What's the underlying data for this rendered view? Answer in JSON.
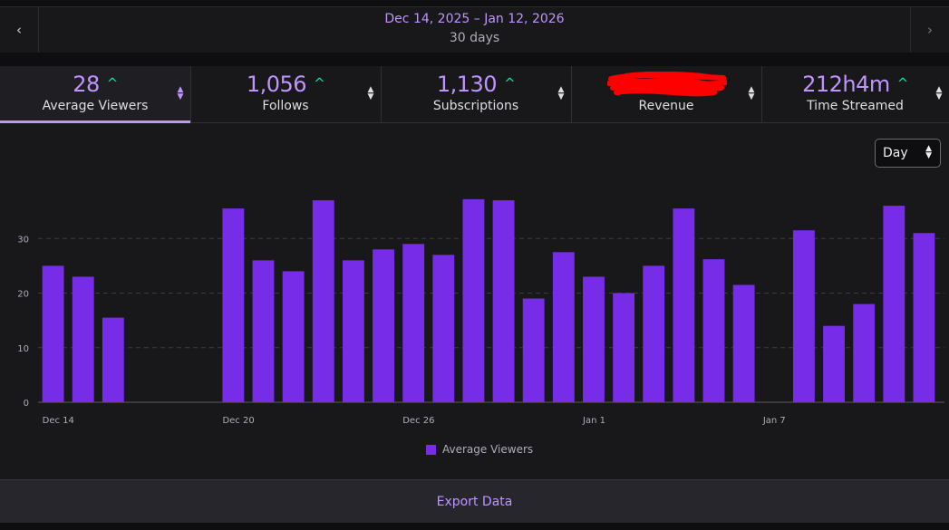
{
  "date_nav": {
    "prev_icon": "chevron-left",
    "next_icon": "chevron-right",
    "range": "Dec 14, 2025 – Jan 12, 2026",
    "days": "30 days"
  },
  "tabs": [
    {
      "value": "28",
      "label": "Average Viewers",
      "trend": "^",
      "active": true
    },
    {
      "value": "1,056",
      "label": "Follows",
      "trend": "^",
      "active": false
    },
    {
      "value": "1,130",
      "label": "Subscriptions",
      "trend": "^",
      "active": false
    },
    {
      "value": "",
      "label": "Revenue",
      "trend": "",
      "active": false,
      "redacted": true
    },
    {
      "value": "212h4m",
      "label": "Time Streamed",
      "trend": "^",
      "active": false
    }
  ],
  "granularity": {
    "selected": "Day"
  },
  "chart_data": {
    "type": "bar",
    "ylim": [
      0,
      40
    ],
    "y_ticks": [
      0,
      10,
      20,
      30,
      40
    ],
    "grid": true,
    "x_tick_labels": [
      {
        "index": 0,
        "label": "Dec 14"
      },
      {
        "index": 6,
        "label": "Dec 20"
      },
      {
        "index": 12,
        "label": "Dec 26"
      },
      {
        "index": 18,
        "label": "Jan 1"
      },
      {
        "index": 24,
        "label": "Jan 7"
      }
    ],
    "series": [
      {
        "name": "Average Viewers",
        "color": "#772ce8",
        "values": [
          25,
          23,
          15.5,
          null,
          null,
          null,
          35.5,
          26,
          24,
          37,
          26,
          28,
          29,
          27,
          37.2,
          37,
          19,
          27.5,
          23,
          20,
          25,
          35.5,
          26.2,
          21.5,
          null,
          31.5,
          14,
          18,
          36,
          31
        ]
      }
    ],
    "legend": "bottom-center"
  },
  "footer": {
    "export_label": "Export Data"
  },
  "colors": {
    "accent": "#bf94ff",
    "bar": "#772ce8",
    "trend_up": "#00e6a3",
    "redaction": "#ff0000"
  }
}
